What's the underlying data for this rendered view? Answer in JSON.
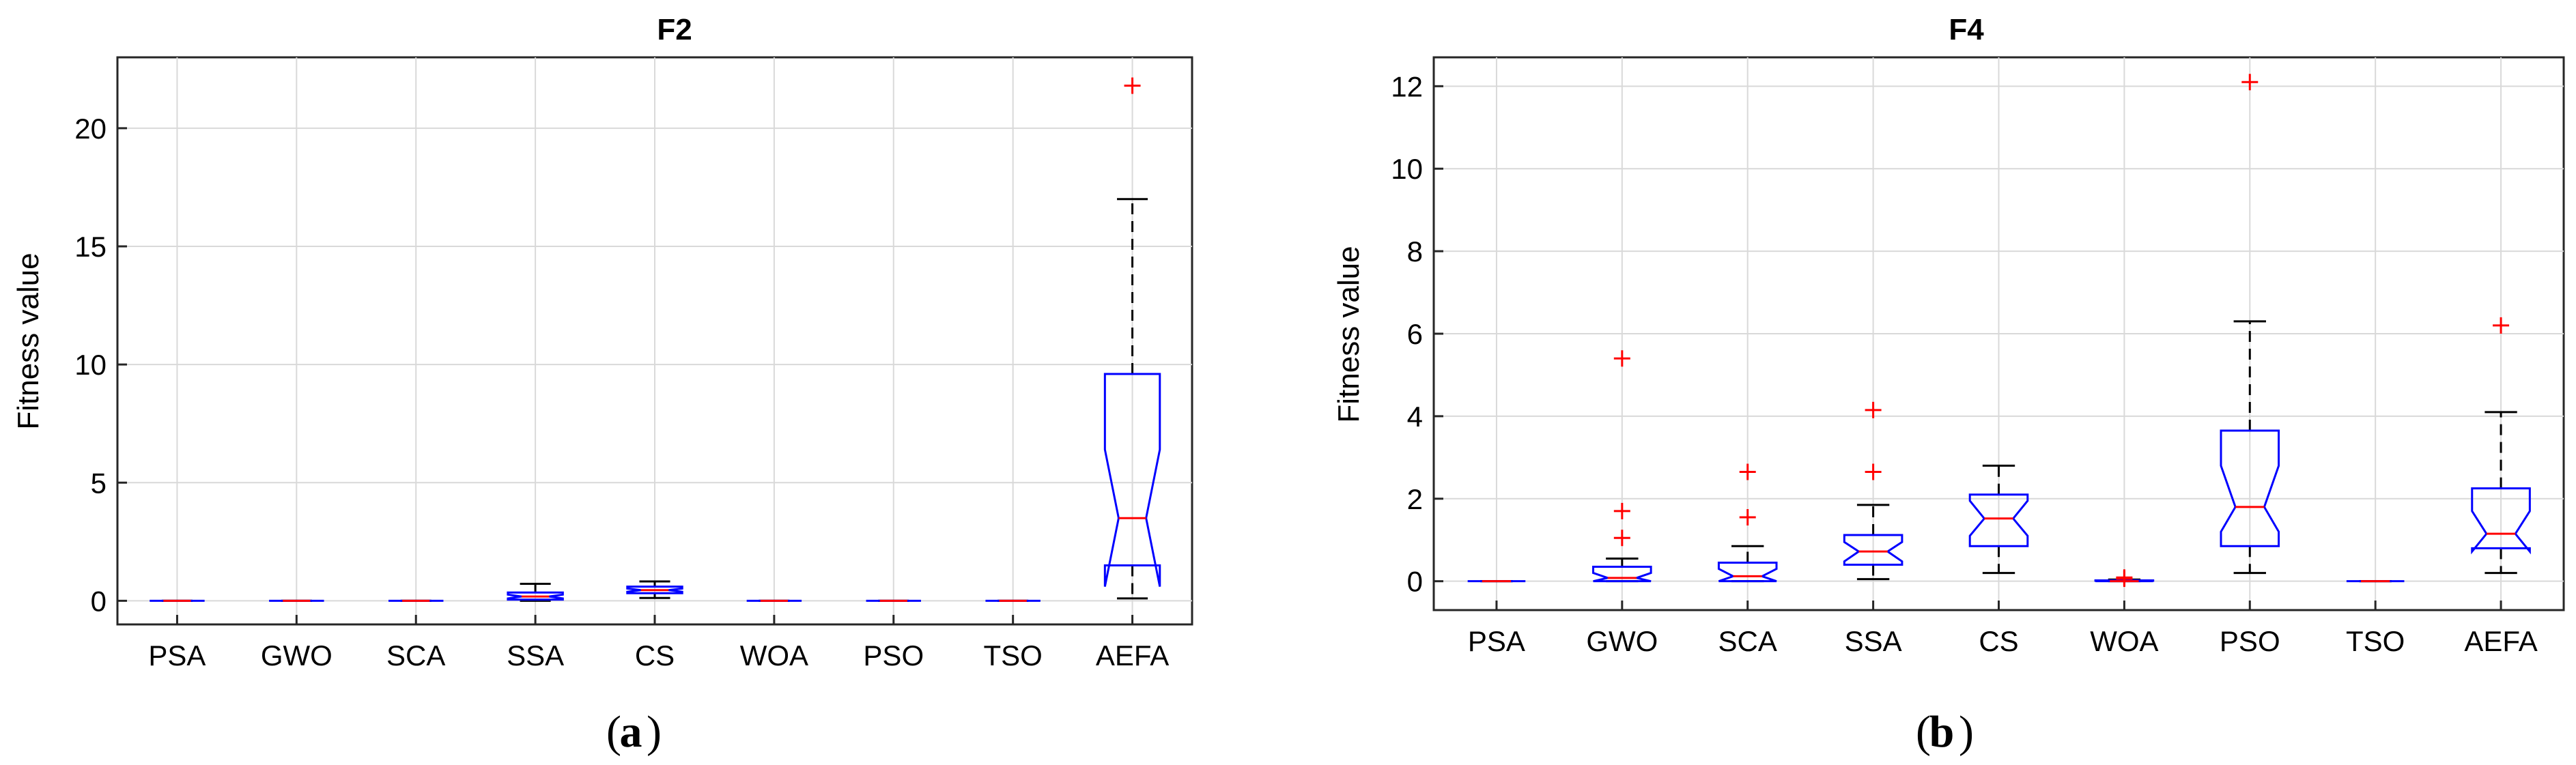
{
  "colors": {
    "box": "#0000ff",
    "median": "#ff0000",
    "whisker": "#000000",
    "outlier": "#ff0000",
    "grid": "#d9d9d9"
  },
  "chart_data": [
    {
      "type": "boxplot",
      "title": "F2",
      "panel_label": "a",
      "xlabel": "",
      "ylabel": "Fitness value",
      "categories": [
        "PSA",
        "GWO",
        "SCA",
        "SSA",
        "CS",
        "WOA",
        "PSO",
        "TSO",
        "AEFA"
      ],
      "ylim": [
        -1,
        23
      ],
      "yticks": [
        0,
        5,
        10,
        15,
        20
      ],
      "grid": true,
      "boxes": [
        {
          "name": "PSA",
          "q1": 0,
          "median": 0,
          "q3": 0,
          "notch_low": 0,
          "notch_high": 0,
          "whisker_low": 0,
          "whisker_high": 0,
          "outliers": []
        },
        {
          "name": "GWO",
          "q1": 0,
          "median": 0,
          "q3": 0,
          "notch_low": 0,
          "notch_high": 0,
          "whisker_low": 0,
          "whisker_high": 0,
          "outliers": []
        },
        {
          "name": "SCA",
          "q1": 0,
          "median": 0,
          "q3": 0,
          "notch_low": 0,
          "notch_high": 0,
          "whisker_low": 0,
          "whisker_high": 0,
          "outliers": []
        },
        {
          "name": "SSA",
          "q1": 0.05,
          "median": 0.18,
          "q3": 0.35,
          "notch_low": 0.1,
          "notch_high": 0.26,
          "whisker_low": 0,
          "whisker_high": 0.72,
          "outliers": []
        },
        {
          "name": "CS",
          "q1": 0.32,
          "median": 0.45,
          "q3": 0.6,
          "notch_low": 0.38,
          "notch_high": 0.52,
          "whisker_low": 0.12,
          "whisker_high": 0.82,
          "outliers": []
        },
        {
          "name": "WOA",
          "q1": 0,
          "median": 0,
          "q3": 0,
          "notch_low": 0,
          "notch_high": 0,
          "whisker_low": 0,
          "whisker_high": 0,
          "outliers": []
        },
        {
          "name": "PSO",
          "q1": 0,
          "median": 0,
          "q3": 0,
          "notch_low": 0,
          "notch_high": 0,
          "whisker_low": 0,
          "whisker_high": 0,
          "outliers": []
        },
        {
          "name": "TSO",
          "q1": 0,
          "median": 0,
          "q3": 0,
          "notch_low": 0,
          "notch_high": 0,
          "whisker_low": 0,
          "whisker_high": 0,
          "outliers": []
        },
        {
          "name": "AEFA",
          "q1": 1.5,
          "median": 3.5,
          "q3": 9.6,
          "notch_low": 0.6,
          "notch_high": 6.4,
          "whisker_low": 0.1,
          "whisker_high": 17.0,
          "outliers": [
            21.8
          ]
        }
      ]
    },
    {
      "type": "boxplot",
      "title": "F4",
      "panel_label": "b",
      "xlabel": "",
      "ylabel": "Fitness value",
      "categories": [
        "PSA",
        "GWO",
        "SCA",
        "SSA",
        "CS",
        "WOA",
        "PSO",
        "TSO",
        "AEFA"
      ],
      "ylim": [
        -0.7,
        12.7
      ],
      "yticks": [
        0,
        2,
        4,
        6,
        8,
        10,
        12
      ],
      "grid": true,
      "boxes": [
        {
          "name": "PSA",
          "q1": 0,
          "median": 0,
          "q3": 0,
          "notch_low": 0,
          "notch_high": 0,
          "whisker_low": 0,
          "whisker_high": 0,
          "outliers": []
        },
        {
          "name": "GWO",
          "q1": 0.0,
          "median": 0.08,
          "q3": 0.35,
          "notch_low": 0.0,
          "notch_high": 0.2,
          "whisker_low": 0,
          "whisker_high": 0.55,
          "outliers": [
            1.05,
            1.7,
            5.4
          ]
        },
        {
          "name": "SCA",
          "q1": 0.0,
          "median": 0.12,
          "q3": 0.45,
          "notch_low": 0.0,
          "notch_high": 0.3,
          "whisker_low": 0,
          "whisker_high": 0.85,
          "outliers": [
            1.55,
            2.65
          ]
        },
        {
          "name": "SSA",
          "q1": 0.4,
          "median": 0.72,
          "q3": 1.12,
          "notch_low": 0.48,
          "notch_high": 0.95,
          "whisker_low": 0.05,
          "whisker_high": 1.85,
          "outliers": [
            2.65,
            4.15
          ]
        },
        {
          "name": "CS",
          "q1": 0.85,
          "median": 1.52,
          "q3": 2.1,
          "notch_low": 1.1,
          "notch_high": 1.95,
          "whisker_low": 0.2,
          "whisker_high": 2.8,
          "outliers": []
        },
        {
          "name": "WOA",
          "q1": 0,
          "median": 0,
          "q3": 0.02,
          "notch_low": 0,
          "notch_high": 0.01,
          "whisker_low": 0,
          "whisker_high": 0.04,
          "outliers": [
            0.06,
            0.09
          ]
        },
        {
          "name": "PSO",
          "q1": 0.85,
          "median": 1.8,
          "q3": 3.65,
          "notch_low": 1.2,
          "notch_high": 2.8,
          "whisker_low": 0.2,
          "whisker_high": 6.3,
          "outliers": [
            12.1
          ]
        },
        {
          "name": "TSO",
          "q1": 0,
          "median": 0,
          "q3": 0,
          "notch_low": 0,
          "notch_high": 0,
          "whisker_low": 0,
          "whisker_high": 0,
          "outliers": []
        },
        {
          "name": "AEFA",
          "q1": 0.8,
          "median": 1.15,
          "q3": 2.25,
          "notch_low": 0.72,
          "notch_high": 1.7,
          "whisker_low": 0.2,
          "whisker_high": 4.1,
          "outliers": [
            6.2
          ]
        }
      ]
    }
  ]
}
